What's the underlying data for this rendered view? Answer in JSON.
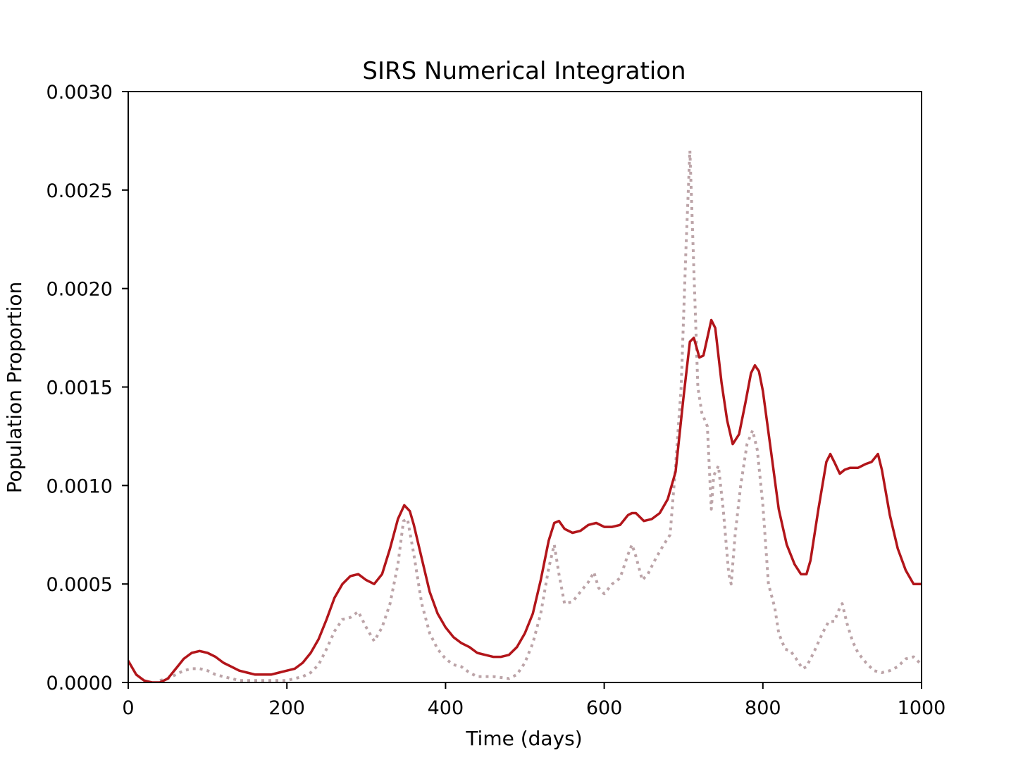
{
  "chart_data": {
    "type": "line",
    "title": "SIRS Numerical Integration",
    "xlabel": "Time (days)",
    "ylabel": "Population Proportion",
    "xlim": [
      0,
      1000
    ],
    "ylim": [
      0,
      0.003
    ],
    "xticks": [
      0,
      200,
      400,
      600,
      800,
      1000
    ],
    "xtick_labels": [
      "0",
      "200",
      "400",
      "600",
      "800",
      "1000"
    ],
    "yticks": [
      0,
      0.0005,
      0.001,
      0.0015,
      0.002,
      0.0025,
      0.003
    ],
    "ytick_labels": [
      "0.0000",
      "0.0005",
      "0.0010",
      "0.0015",
      "0.0020",
      "0.0025",
      "0.0030"
    ],
    "grid": false,
    "legend": false,
    "series": [
      {
        "style": "solid",
        "color": "#b2151a",
        "points": [
          [
            0,
            0.00011
          ],
          [
            10,
            4e-05
          ],
          [
            20,
            1e-05
          ],
          [
            30,
            0.0
          ],
          [
            40,
            0.0
          ],
          [
            50,
            2e-05
          ],
          [
            60,
            7e-05
          ],
          [
            70,
            0.00012
          ],
          [
            80,
            0.00015
          ],
          [
            90,
            0.00016
          ],
          [
            100,
            0.00015
          ],
          [
            110,
            0.00013
          ],
          [
            120,
            0.0001
          ],
          [
            130,
            8e-05
          ],
          [
            140,
            6e-05
          ],
          [
            150,
            5e-05
          ],
          [
            160,
            4e-05
          ],
          [
            170,
            4e-05
          ],
          [
            180,
            4e-05
          ],
          [
            190,
            5e-05
          ],
          [
            200,
            6e-05
          ],
          [
            210,
            7e-05
          ],
          [
            220,
            0.0001
          ],
          [
            230,
            0.00015
          ],
          [
            240,
            0.00022
          ],
          [
            250,
            0.00032
          ],
          [
            260,
            0.00043
          ],
          [
            270,
            0.0005
          ],
          [
            280,
            0.00054
          ],
          [
            290,
            0.00055
          ],
          [
            300,
            0.00052
          ],
          [
            310,
            0.0005
          ],
          [
            320,
            0.00055
          ],
          [
            330,
            0.00068
          ],
          [
            340,
            0.00083
          ],
          [
            348,
            0.0009
          ],
          [
            355,
            0.00087
          ],
          [
            360,
            0.0008
          ],
          [
            370,
            0.00063
          ],
          [
            380,
            0.00046
          ],
          [
            390,
            0.00035
          ],
          [
            400,
            0.00028
          ],
          [
            410,
            0.00023
          ],
          [
            420,
            0.0002
          ],
          [
            430,
            0.00018
          ],
          [
            440,
            0.00015
          ],
          [
            450,
            0.00014
          ],
          [
            460,
            0.00013
          ],
          [
            470,
            0.00013
          ],
          [
            480,
            0.00014
          ],
          [
            490,
            0.00018
          ],
          [
            500,
            0.00025
          ],
          [
            510,
            0.00035
          ],
          [
            520,
            0.00052
          ],
          [
            530,
            0.00072
          ],
          [
            537,
            0.00081
          ],
          [
            543,
            0.00082
          ],
          [
            550,
            0.00078
          ],
          [
            560,
            0.00076
          ],
          [
            570,
            0.00077
          ],
          [
            580,
            0.0008
          ],
          [
            590,
            0.00081
          ],
          [
            600,
            0.00079
          ],
          [
            610,
            0.00079
          ],
          [
            620,
            0.0008
          ],
          [
            630,
            0.00085
          ],
          [
            635,
            0.00086
          ],
          [
            640,
            0.00086
          ],
          [
            650,
            0.00082
          ],
          [
            660,
            0.00083
          ],
          [
            670,
            0.00086
          ],
          [
            680,
            0.00093
          ],
          [
            690,
            0.00107
          ],
          [
            700,
            0.00145
          ],
          [
            708,
            0.00173
          ],
          [
            713,
            0.00175
          ],
          [
            720,
            0.00165
          ],
          [
            725,
            0.00166
          ],
          [
            730,
            0.00175
          ],
          [
            735,
            0.00184
          ],
          [
            740,
            0.0018
          ],
          [
            748,
            0.00152
          ],
          [
            755,
            0.00133
          ],
          [
            762,
            0.00121
          ],
          [
            770,
            0.00126
          ],
          [
            778,
            0.00142
          ],
          [
            785,
            0.00157
          ],
          [
            790,
            0.00161
          ],
          [
            795,
            0.00158
          ],
          [
            800,
            0.00148
          ],
          [
            810,
            0.00118
          ],
          [
            820,
            0.00088
          ],
          [
            830,
            0.0007
          ],
          [
            840,
            0.0006
          ],
          [
            848,
            0.00055
          ],
          [
            855,
            0.00055
          ],
          [
            860,
            0.00062
          ],
          [
            870,
            0.00088
          ],
          [
            880,
            0.00112
          ],
          [
            885,
            0.00116
          ],
          [
            890,
            0.00112
          ],
          [
            897,
            0.00106
          ],
          [
            903,
            0.00108
          ],
          [
            910,
            0.00109
          ],
          [
            920,
            0.00109
          ],
          [
            930,
            0.00111
          ],
          [
            937,
            0.00112
          ],
          [
            945,
            0.00116
          ],
          [
            950,
            0.00108
          ],
          [
            960,
            0.00085
          ],
          [
            970,
            0.00068
          ],
          [
            980,
            0.00057
          ],
          [
            990,
            0.0005
          ],
          [
            1000,
            0.0005
          ]
        ]
      },
      {
        "style": "dotted",
        "color": "#bca4a8",
        "points": [
          [
            40,
            1e-05
          ],
          [
            50,
            2e-05
          ],
          [
            60,
            4e-05
          ],
          [
            70,
            6e-05
          ],
          [
            80,
            7e-05
          ],
          [
            90,
            7e-05
          ],
          [
            100,
            6e-05
          ],
          [
            110,
            4e-05
          ],
          [
            120,
            3e-05
          ],
          [
            130,
            2e-05
          ],
          [
            140,
            1e-05
          ],
          [
            160,
            1e-05
          ],
          [
            180,
            1e-05
          ],
          [
            200,
            1e-05
          ],
          [
            210,
            2e-05
          ],
          [
            220,
            3e-05
          ],
          [
            230,
            5e-05
          ],
          [
            240,
            9e-05
          ],
          [
            250,
            0.00017
          ],
          [
            260,
            0.00026
          ],
          [
            270,
            0.00032
          ],
          [
            280,
            0.00033
          ],
          [
            290,
            0.00036
          ],
          [
            300,
            0.00028
          ],
          [
            310,
            0.00021
          ],
          [
            320,
            0.00028
          ],
          [
            330,
            0.0004
          ],
          [
            340,
            0.0006
          ],
          [
            347,
            0.00082
          ],
          [
            352,
            0.00083
          ],
          [
            360,
            0.00065
          ],
          [
            370,
            0.0004
          ],
          [
            380,
            0.00025
          ],
          [
            390,
            0.00017
          ],
          [
            400,
            0.00012
          ],
          [
            410,
            9e-05
          ],
          [
            420,
            8e-05
          ],
          [
            430,
            5e-05
          ],
          [
            440,
            3e-05
          ],
          [
            460,
            3e-05
          ],
          [
            480,
            2e-05
          ],
          [
            490,
            4e-05
          ],
          [
            500,
            0.0001
          ],
          [
            510,
            0.0002
          ],
          [
            520,
            0.00035
          ],
          [
            530,
            0.00058
          ],
          [
            537,
            0.0007
          ],
          [
            543,
            0.00055
          ],
          [
            550,
            0.0004
          ],
          [
            560,
            0.00041
          ],
          [
            570,
            0.00046
          ],
          [
            580,
            0.00051
          ],
          [
            587,
            0.00056
          ],
          [
            593,
            0.00048
          ],
          [
            600,
            0.00045
          ],
          [
            610,
            0.0005
          ],
          [
            620,
            0.00053
          ],
          [
            630,
            0.00065
          ],
          [
            635,
            0.0007
          ],
          [
            640,
            0.00064
          ],
          [
            648,
            0.00052
          ],
          [
            655,
            0.00055
          ],
          [
            665,
            0.00063
          ],
          [
            675,
            0.0007
          ],
          [
            683,
            0.00075
          ],
          [
            690,
            0.0011
          ],
          [
            697,
            0.0015
          ],
          [
            703,
            0.0022
          ],
          [
            708,
            0.0027
          ],
          [
            713,
            0.0021
          ],
          [
            718,
            0.0015
          ],
          [
            723,
            0.00137
          ],
          [
            730,
            0.0013
          ],
          [
            735,
            0.00088
          ],
          [
            738,
            0.00105
          ],
          [
            744,
            0.0011
          ],
          [
            750,
            0.00088
          ],
          [
            757,
            0.00055
          ],
          [
            760,
            0.0005
          ],
          [
            765,
            0.00075
          ],
          [
            772,
            0.001
          ],
          [
            780,
            0.00121
          ],
          [
            787,
            0.00128
          ],
          [
            793,
            0.00118
          ],
          [
            800,
            0.0009
          ],
          [
            807,
            0.0005
          ],
          [
            815,
            0.00038
          ],
          [
            820,
            0.00025
          ],
          [
            828,
            0.00017
          ],
          [
            835,
            0.00016
          ],
          [
            842,
            0.00012
          ],
          [
            850,
            7e-05
          ],
          [
            855,
            8e-05
          ],
          [
            865,
            0.00016
          ],
          [
            875,
            0.00025
          ],
          [
            883,
            0.00031
          ],
          [
            890,
            0.00031
          ],
          [
            896,
            0.00037
          ],
          [
            900,
            0.0004
          ],
          [
            906,
            0.0003
          ],
          [
            913,
            0.00021
          ],
          [
            920,
            0.00015
          ],
          [
            930,
            0.0001
          ],
          [
            940,
            6e-05
          ],
          [
            950,
            5e-05
          ],
          [
            960,
            6e-05
          ],
          [
            970,
            8e-05
          ],
          [
            980,
            0.00012
          ],
          [
            990,
            0.00013
          ],
          [
            1000,
            9e-05
          ]
        ]
      }
    ]
  }
}
